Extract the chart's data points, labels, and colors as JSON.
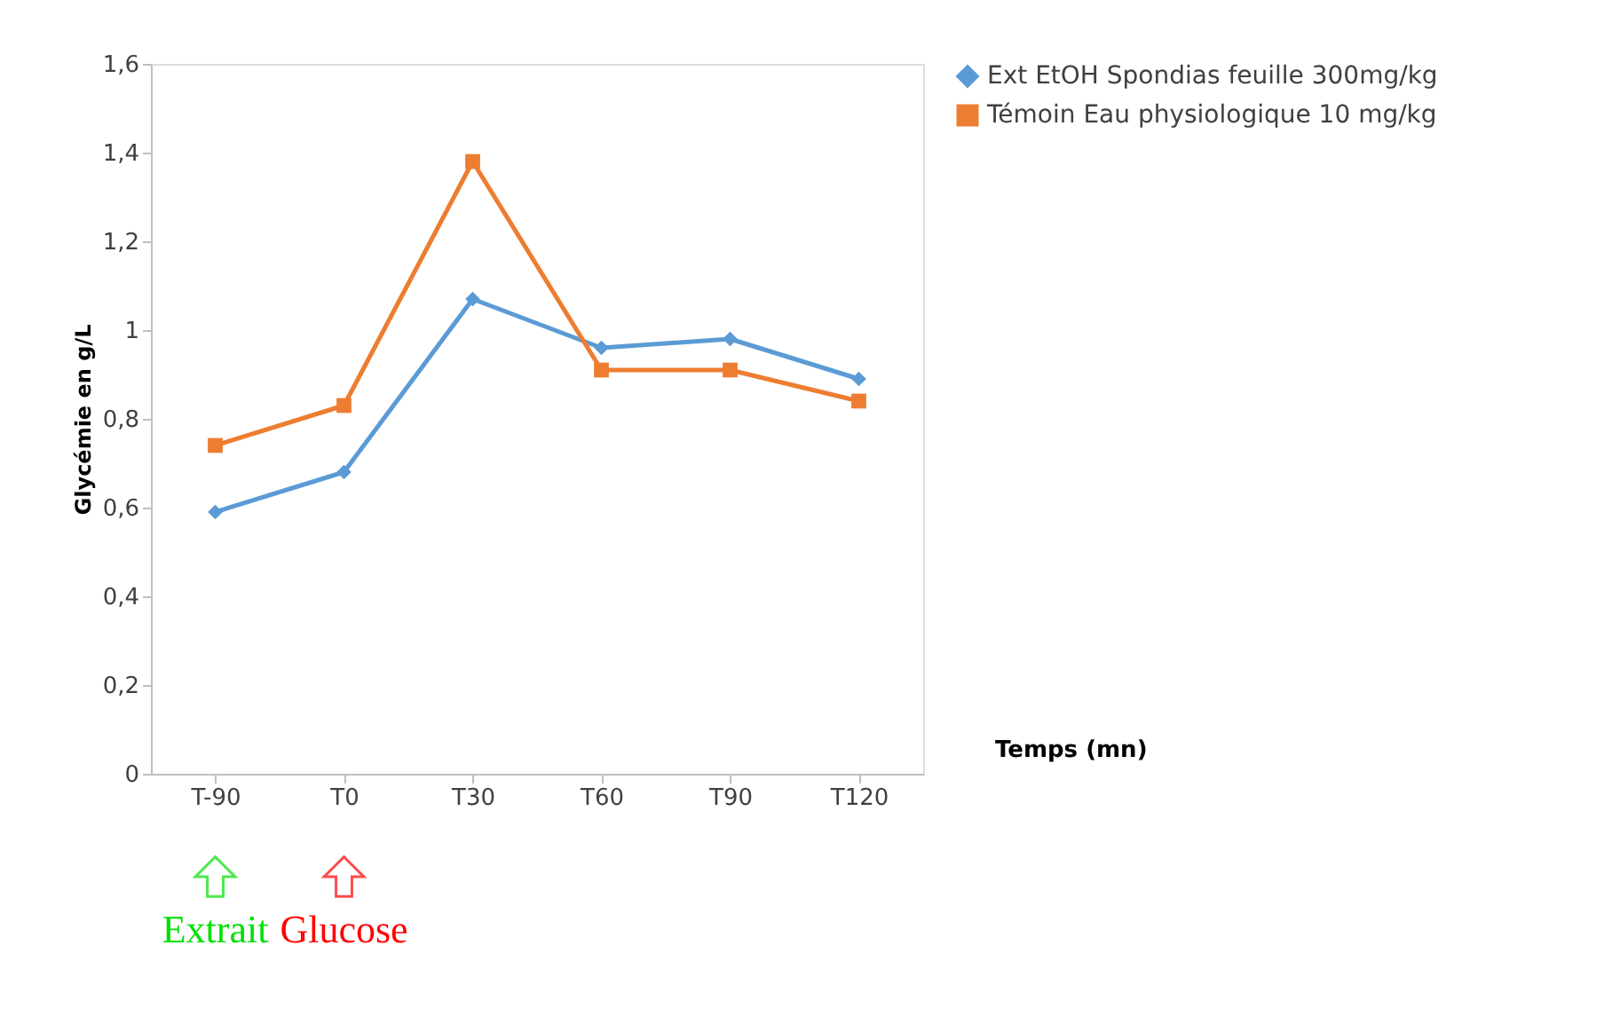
{
  "chart_data": {
    "type": "line",
    "ylabel": "Glycémie en g/L",
    "xlabel": "Temps (mn)",
    "categories": [
      "T-90",
      "T0",
      "T30",
      "T60",
      "T90",
      "T120"
    ],
    "series": [
      {
        "name": "Ext EtOH Spondias feuille 300mg/kg",
        "color": "#5b9bd5",
        "marker": "diamond",
        "values": [
          0.59,
          0.68,
          1.07,
          0.96,
          0.98,
          0.89
        ]
      },
      {
        "name": "Témoin Eau physiologique 10 mg/kg",
        "color": "#ed7d31",
        "marker": "square",
        "values": [
          0.74,
          0.83,
          1.38,
          0.91,
          0.91,
          0.84
        ]
      }
    ],
    "ylim": [
      0,
      1.6
    ],
    "yticks": [
      {
        "value": 0,
        "label": "0"
      },
      {
        "value": 0.2,
        "label": "0,2"
      },
      {
        "value": 0.4,
        "label": "0,4"
      },
      {
        "value": 0.6,
        "label": "0,6"
      },
      {
        "value": 0.8,
        "label": "0,8"
      },
      {
        "value": 1,
        "label": "1"
      },
      {
        "value": 1.2,
        "label": "1,2"
      },
      {
        "value": 1.4,
        "label": "1,4"
      },
      {
        "value": 1.6,
        "label": "1,6"
      }
    ],
    "grid": false,
    "legend": "right",
    "annotations": [
      "Extrait",
      "Glucose"
    ]
  }
}
